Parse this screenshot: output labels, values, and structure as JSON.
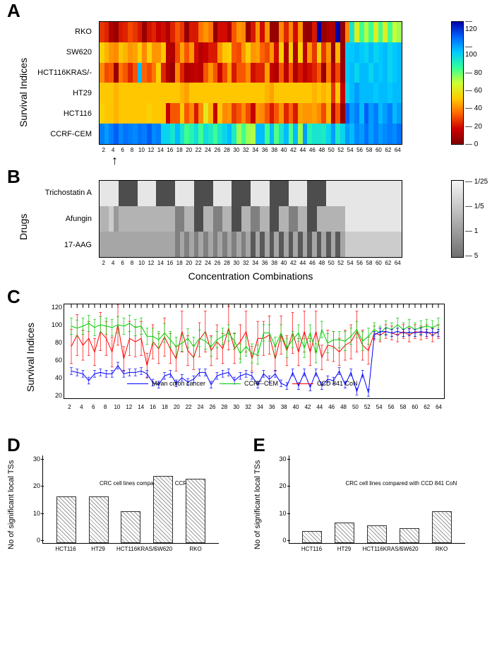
{
  "panelA": {
    "letter": "A",
    "y_label": "Survival Indices",
    "rows": [
      "RKO",
      "SW620",
      "HCT116KRAS/-",
      "HT29",
      "HCT116",
      "CCRF-CEM"
    ],
    "x_ticks": [
      2,
      4,
      6,
      8,
      10,
      12,
      14,
      16,
      18,
      20,
      22,
      24,
      26,
      28,
      30,
      32,
      34,
      36,
      38,
      40,
      42,
      44,
      46,
      48,
      50,
      52,
      54,
      56,
      58,
      60,
      62,
      64
    ],
    "colorbar_ticks": [
      120,
      100,
      80,
      60,
      40,
      20,
      0
    ],
    "colorbar_gradient": [
      "#0000aa",
      "#0066ff",
      "#00ccff",
      "#33ff99",
      "#ccff33",
      "#ffcc00",
      "#ff6600",
      "#cc0000",
      "#800000"
    ],
    "arrow_at": 4,
    "data": [
      [
        25,
        22,
        10,
        5,
        20,
        22,
        28,
        25,
        20,
        5,
        19,
        22,
        15,
        18,
        10,
        22,
        30,
        25,
        5,
        20,
        20,
        35,
        40,
        35,
        5,
        18,
        18,
        10,
        30,
        40,
        38,
        5,
        20,
        40,
        18,
        40,
        5,
        5,
        38,
        22,
        38,
        18,
        40,
        5,
        5,
        20,
        150,
        5,
        10,
        10,
        150,
        5,
        38,
        90,
        60,
        80,
        68,
        80,
        60,
        80,
        60,
        80,
        65,
        70
      ],
      [
        50,
        45,
        40,
        38,
        48,
        45,
        40,
        42,
        50,
        38,
        50,
        40,
        40,
        48,
        12,
        10,
        28,
        42,
        30,
        40,
        18,
        12,
        15,
        20,
        20,
        40,
        48,
        50,
        30,
        28,
        40,
        50,
        40,
        42,
        32,
        28,
        40,
        18,
        50,
        10,
        50,
        10,
        50,
        12,
        40,
        25,
        50,
        25,
        40,
        5,
        45,
        5,
        98,
        98,
        100,
        98,
        95,
        100,
        95,
        98,
        100,
        95,
        98,
        100
      ],
      [
        38,
        28,
        30,
        5,
        35,
        30,
        22,
        30,
        100,
        32,
        28,
        35,
        50,
        22,
        10,
        5,
        38,
        22,
        10,
        12,
        15,
        12,
        30,
        40,
        30,
        15,
        28,
        42,
        20,
        30,
        30,
        38,
        18,
        22,
        22,
        42,
        15,
        10,
        30,
        12,
        30,
        10,
        20,
        12,
        18,
        22,
        30,
        5,
        35,
        12,
        28,
        5,
        98,
        100,
        95,
        100,
        100,
        95,
        100,
        98,
        100,
        95,
        98,
        100
      ],
      [
        48,
        48,
        48,
        45,
        48,
        48,
        48,
        48,
        48,
        48,
        48,
        48,
        48,
        48,
        48,
        48,
        48,
        45,
        42,
        48,
        48,
        48,
        48,
        48,
        48,
        48,
        48,
        48,
        48,
        48,
        48,
        48,
        48,
        48,
        48,
        45,
        42,
        48,
        48,
        48,
        48,
        48,
        48,
        48,
        48,
        45,
        48,
        45,
        48,
        25,
        48,
        15,
        95,
        100,
        105,
        100,
        100,
        100,
        98,
        100,
        100,
        98,
        100,
        100
      ],
      [
        50,
        48,
        48,
        45,
        48,
        48,
        48,
        48,
        48,
        48,
        50,
        48,
        48,
        48,
        15,
        30,
        30,
        48,
        30,
        38,
        20,
        38,
        58,
        45,
        15,
        48,
        38,
        40,
        25,
        30,
        38,
        28,
        15,
        40,
        38,
        30,
        20,
        30,
        40,
        22,
        32,
        20,
        42,
        40,
        40,
        42,
        38,
        28,
        45,
        12,
        30,
        5,
        115,
        105,
        110,
        100,
        115,
        105,
        110,
        100,
        105,
        110,
        100,
        105
      ],
      [
        110,
        105,
        110,
        115,
        108,
        112,
        110,
        108,
        112,
        110,
        115,
        108,
        110,
        95,
        95,
        90,
        100,
        90,
        80,
        85,
        92,
        80,
        92,
        88,
        80,
        90,
        95,
        100,
        88,
        70,
        80,
        70,
        68,
        100,
        100,
        80,
        100,
        78,
        90,
        100,
        78,
        100,
        70,
        105,
        85,
        90,
        90,
        88,
        95,
        105,
        88,
        95,
        105,
        100,
        108,
        105,
        112,
        105,
        110,
        105,
        108,
        110,
        108,
        112
      ]
    ]
  },
  "panelB": {
    "letter": "B",
    "y_label": "Drugs",
    "x_label": "Concentration Combinations",
    "rows": [
      "Trichostatin A",
      "Afungin",
      "17-AAG"
    ],
    "x_ticks": [
      2,
      4,
      6,
      8,
      10,
      12,
      14,
      16,
      18,
      20,
      22,
      24,
      26,
      28,
      30,
      32,
      34,
      36,
      38,
      40,
      42,
      44,
      46,
      48,
      50,
      52,
      54,
      56,
      58,
      60,
      62,
      64
    ],
    "colorbar_ticks": [
      "1/25",
      "1/5",
      "1",
      "5"
    ],
    "data": [
      [
        0.9,
        0.9,
        0.9,
        0.9,
        0.3,
        0.3,
        0.3,
        0.3,
        0.9,
        0.9,
        0.9,
        0.9,
        0.3,
        0.3,
        0.3,
        0.3,
        0.9,
        0.9,
        0.9,
        0.9,
        0.3,
        0.3,
        0.3,
        0.3,
        0.9,
        0.9,
        0.9,
        0.9,
        0.3,
        0.3,
        0.3,
        0.3,
        0.9,
        0.9,
        0.9,
        0.9,
        0.3,
        0.3,
        0.3,
        0.3,
        0.9,
        0.9,
        0.9,
        0.9,
        0.3,
        0.3,
        0.3,
        0.3,
        0.9,
        0.9,
        0.9,
        0.9,
        0.9,
        0.9,
        0.9,
        0.9,
        0.9,
        0.9,
        0.9,
        0.9,
        0.9,
        0.9,
        0.9,
        0.9
      ],
      [
        0.7,
        0.7,
        0.8,
        0.6,
        0.7,
        0.7,
        0.7,
        0.7,
        0.7,
        0.7,
        0.7,
        0.7,
        0.7,
        0.7,
        0.7,
        0.7,
        0.5,
        0.5,
        0.7,
        0.7,
        0.3,
        0.3,
        0.7,
        0.7,
        0.5,
        0.5,
        0.7,
        0.7,
        0.3,
        0.3,
        0.7,
        0.7,
        0.5,
        0.5,
        0.7,
        0.7,
        0.3,
        0.3,
        0.7,
        0.7,
        0.5,
        0.5,
        0.7,
        0.7,
        0.3,
        0.3,
        0.7,
        0.7,
        0.7,
        0.7,
        0.7,
        0.7,
        0.9,
        0.9,
        0.9,
        0.9,
        0.9,
        0.9,
        0.9,
        0.9,
        0.9,
        0.9,
        0.9,
        0.9
      ],
      [
        0.65,
        0.65,
        0.65,
        0.65,
        0.65,
        0.65,
        0.65,
        0.65,
        0.65,
        0.65,
        0.65,
        0.65,
        0.65,
        0.65,
        0.65,
        0.65,
        0.5,
        0.65,
        0.5,
        0.65,
        0.5,
        0.65,
        0.5,
        0.65,
        0.5,
        0.65,
        0.5,
        0.65,
        0.5,
        0.65,
        0.5,
        0.65,
        0.35,
        0.65,
        0.35,
        0.65,
        0.35,
        0.65,
        0.35,
        0.65,
        0.35,
        0.65,
        0.35,
        0.65,
        0.35,
        0.65,
        0.35,
        0.65,
        0.35,
        0.65,
        0.35,
        0.65,
        0.8,
        0.8,
        0.8,
        0.8,
        0.8,
        0.8,
        0.8,
        0.8,
        0.8,
        0.8,
        0.8,
        0.8
      ]
    ]
  },
  "panelC": {
    "letter": "C",
    "y_label": "Survival Indices",
    "y_ticks": [
      20,
      40,
      60,
      80,
      100,
      120
    ],
    "y_range": [
      0,
      140
    ],
    "x_ticks": [
      2,
      4,
      6,
      8,
      10,
      12,
      14,
      16,
      18,
      20,
      22,
      24,
      26,
      28,
      30,
      32,
      34,
      36,
      38,
      40,
      42,
      44,
      46,
      48,
      50,
      52,
      54,
      56,
      58,
      60,
      62,
      64
    ],
    "legends": [
      {
        "label": "Mean colon cancer",
        "color": "#0000ff"
      },
      {
        "label": "CCRF-CEM",
        "color": "#00cc00"
      },
      {
        "label": "CCD 841 CoN",
        "color": "#ff0000"
      }
    ],
    "series": {
      "blue": [
        42,
        40,
        38,
        28,
        38,
        40,
        38,
        38,
        50,
        38,
        40,
        40,
        42,
        38,
        25,
        22,
        35,
        38,
        24,
        32,
        26,
        30,
        40,
        40,
        22,
        35,
        38,
        40,
        28,
        35,
        38,
        35,
        22,
        38,
        30,
        38,
        24,
        20,
        40,
        20,
        40,
        18,
        40,
        20,
        30,
        28,
        42,
        22,
        40,
        12,
        38,
        10,
        95,
        100,
        100,
        98,
        100,
        98,
        99,
        98,
        100,
        98,
        99,
        98
      ],
      "green": [
        108,
        105,
        108,
        112,
        106,
        110,
        108,
        106,
        110,
        108,
        112,
        106,
        108,
        93,
        93,
        88,
        98,
        88,
        78,
        83,
        90,
        78,
        90,
        86,
        78,
        88,
        93,
        98,
        86,
        68,
        78,
        68,
        66,
        98,
        98,
        78,
        98,
        76,
        88,
        98,
        76,
        98,
        68,
        103,
        83,
        88,
        88,
        86,
        93,
        103,
        86,
        93,
        103,
        98,
        106,
        103,
        110,
        103,
        108,
        103,
        106,
        108,
        106,
        110
      ],
      "red": [
        78,
        95,
        80,
        90,
        70,
        100,
        90,
        70,
        110,
        60,
        90,
        85,
        90,
        50,
        85,
        75,
        92,
        75,
        60,
        100,
        72,
        62,
        88,
        100,
        72,
        85,
        75,
        105,
        75,
        85,
        100,
        60,
        90,
        90,
        95,
        60,
        95,
        72,
        98,
        70,
        100,
        70,
        100,
        62,
        80,
        78,
        70,
        80,
        85,
        100,
        80,
        72,
        98,
        95,
        100,
        98,
        95,
        100,
        95,
        100,
        98,
        100,
        95,
        100
      ],
      "red_err": [
        25,
        30,
        22,
        25,
        20,
        28,
        25,
        22,
        30,
        18,
        25,
        22,
        25,
        18,
        25,
        22,
        28,
        22,
        18,
        30,
        22,
        18,
        25,
        30,
        22,
        25,
        22,
        32,
        22,
        25,
        30,
        18,
        25,
        25,
        28,
        18,
        28,
        22,
        30,
        20,
        30,
        20,
        30,
        18,
        22,
        22,
        20,
        22,
        25,
        30,
        22,
        20,
        10,
        10,
        10,
        10,
        10,
        10,
        10,
        10,
        10,
        10,
        10,
        10
      ],
      "green_err": [
        12,
        12,
        12,
        12,
        12,
        12,
        12,
        12,
        12,
        12,
        12,
        12,
        12,
        12,
        12,
        12,
        14,
        12,
        14,
        12,
        14,
        14,
        12,
        12,
        14,
        12,
        12,
        12,
        12,
        14,
        14,
        14,
        14,
        12,
        12,
        14,
        12,
        14,
        12,
        12,
        14,
        12,
        14,
        12,
        14,
        12,
        12,
        14,
        12,
        12,
        14,
        12,
        10,
        10,
        10,
        10,
        10,
        10,
        10,
        10,
        10,
        10,
        10,
        10
      ],
      "blue_err": [
        5,
        5,
        5,
        5,
        5,
        5,
        5,
        5,
        5,
        5,
        5,
        5,
        5,
        5,
        5,
        5,
        5,
        5,
        5,
        5,
        5,
        5,
        5,
        5,
        5,
        5,
        5,
        5,
        5,
        5,
        5,
        5,
        5,
        5,
        5,
        5,
        5,
        5,
        5,
        5,
        5,
        5,
        5,
        5,
        5,
        5,
        5,
        5,
        5,
        5,
        5,
        5,
        5,
        5,
        5,
        5,
        5,
        5,
        5,
        5,
        5,
        5,
        5,
        5
      ]
    }
  },
  "panelD": {
    "letter": "D",
    "y_label": "No of significant local TSs",
    "title": "CRC cell lines compared with CCRF-CEM",
    "y_ticks": [
      0,
      10,
      20,
      30
    ],
    "y_max": 30,
    "categories": [
      "HCT116",
      "HT29",
      "HCT116KRAS/-",
      "SW620",
      "RKO"
    ],
    "values": [
      16,
      16,
      11,
      23,
      22
    ]
  },
  "panelE": {
    "letter": "E",
    "y_label": "No of significant local TSs",
    "title": "CRC cell lines compared with CCD 841 CoN",
    "y_ticks": [
      0,
      10,
      20,
      30
    ],
    "y_max": 30,
    "categories": [
      "HCT116",
      "HT29",
      "HCT116KRAS/-",
      "SW620",
      "RKO"
    ],
    "values": [
      4,
      7,
      6,
      5,
      11
    ]
  }
}
